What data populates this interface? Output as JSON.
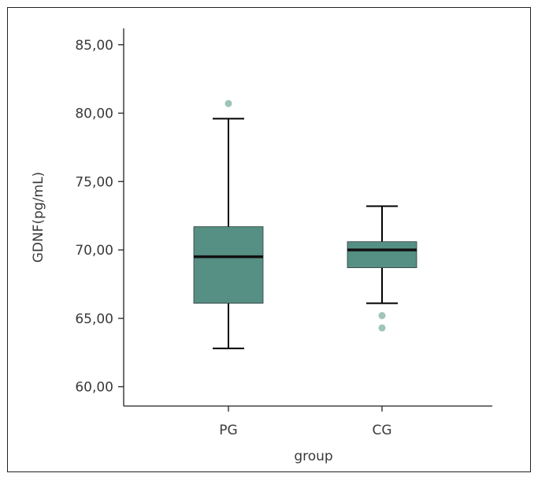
{
  "chart_data": {
    "type": "boxplot",
    "title": "",
    "xlabel": "group",
    "ylabel": "GDNF(pg/mL)",
    "ylim": [
      59.5,
      86.5
    ],
    "yticks": [
      60,
      65,
      70,
      75,
      80,
      85
    ],
    "ytick_labels": [
      "60,00",
      "65,00",
      "70,00",
      "75,00",
      "80,00",
      "85,00"
    ],
    "categories": [
      "PG",
      "CG"
    ],
    "boxes": [
      {
        "name": "PG",
        "whisker_low": 62.8,
        "q1": 66.1,
        "median": 69.5,
        "q3": 71.7,
        "whisker_high": 79.6,
        "outliers": [
          80.7
        ]
      },
      {
        "name": "CG",
        "whisker_low": 66.1,
        "q1": 68.7,
        "median": 70.0,
        "q3": 70.6,
        "whisker_high": 73.2,
        "outliers": [
          65.2,
          64.3
        ]
      }
    ],
    "colors": {
      "box": "#568f83",
      "outlier": "#9fc4ba",
      "median": "#111111",
      "axis": "#222222"
    },
    "grid": false
  }
}
